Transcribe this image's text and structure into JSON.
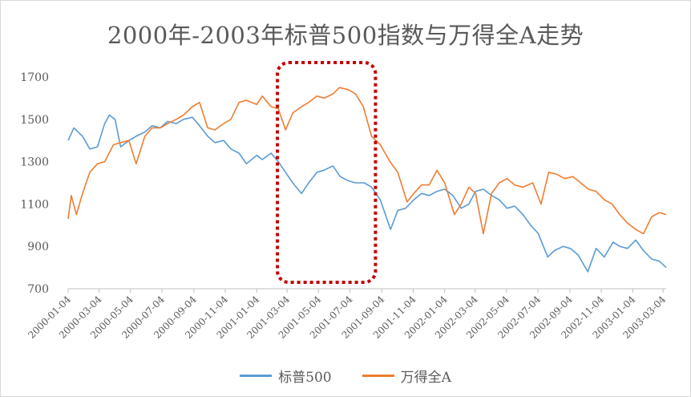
{
  "chart_data": {
    "type": "line",
    "title": "2000年-2003年标普500指数与万得全A走势",
    "xlabel": "",
    "ylabel": "",
    "ylim": [
      700,
      1700
    ],
    "yticks": [
      700,
      900,
      1100,
      1300,
      1500,
      1700
    ],
    "x_tick_labels": [
      "2000-01-04",
      "2000-03-04",
      "2000-05-04",
      "2000-07-04",
      "2000-09-04",
      "2000-11-04",
      "2001-01-04",
      "2001-03-04",
      "2001-05-04",
      "2001-07-04",
      "2001-09-04",
      "2001-11-04",
      "2002-01-04",
      "2002-03-04",
      "2002-05-04",
      "2002-07-04",
      "2002-09-04",
      "2002-11-04",
      "2003-01-04",
      "2003-03-04"
    ],
    "xrange": [
      "2000-01-04",
      "2003-03-10"
    ],
    "grid": false,
    "legend_position": "bottom",
    "highlight_box": [
      "2001-03-04",
      "2001-08-04"
    ],
    "colors": {
      "sp500": "#5b9bd5",
      "wind": "#ed7d31",
      "highlight": "#c00000"
    },
    "series": [
      {
        "name": "标普500",
        "x": [
          "2000-01-04",
          "2000-01-15",
          "2000-02-01",
          "2000-02-15",
          "2000-03-01",
          "2000-03-15",
          "2000-03-24",
          "2000-04-04",
          "2000-04-15",
          "2000-05-01",
          "2000-05-15",
          "2000-06-01",
          "2000-06-15",
          "2000-07-01",
          "2000-07-15",
          "2000-08-01",
          "2000-08-15",
          "2000-09-01",
          "2000-09-15",
          "2000-10-01",
          "2000-10-15",
          "2000-11-01",
          "2000-11-15",
          "2000-12-01",
          "2000-12-15",
          "2001-01-04",
          "2001-01-15",
          "2001-02-01",
          "2001-02-15",
          "2001-03-01",
          "2001-03-15",
          "2001-04-01",
          "2001-04-15",
          "2001-05-01",
          "2001-05-15",
          "2001-06-01",
          "2001-06-15",
          "2001-07-01",
          "2001-07-15",
          "2001-08-01",
          "2001-08-15",
          "2001-09-01",
          "2001-09-21",
          "2001-10-05",
          "2001-10-20",
          "2001-11-05",
          "2001-11-20",
          "2001-12-05",
          "2001-12-20",
          "2002-01-04",
          "2002-01-20",
          "2002-02-05",
          "2002-02-20",
          "2002-03-05",
          "2002-03-20",
          "2002-04-05",
          "2002-04-20",
          "2002-05-05",
          "2002-05-20",
          "2002-06-05",
          "2002-06-20",
          "2002-07-05",
          "2002-07-23",
          "2002-08-05",
          "2002-08-22",
          "2002-09-05",
          "2002-09-20",
          "2002-10-09",
          "2002-10-25",
          "2002-11-10",
          "2002-11-27",
          "2002-12-10",
          "2002-12-25",
          "2003-01-10",
          "2003-01-25",
          "2003-02-10",
          "2003-02-25",
          "2003-03-10"
        ],
        "values": [
          1400,
          1460,
          1420,
          1360,
          1370,
          1480,
          1520,
          1500,
          1370,
          1400,
          1420,
          1440,
          1470,
          1460,
          1490,
          1480,
          1500,
          1510,
          1470,
          1420,
          1390,
          1400,
          1360,
          1340,
          1290,
          1330,
          1310,
          1340,
          1300,
          1250,
          1200,
          1150,
          1200,
          1250,
          1260,
          1280,
          1230,
          1210,
          1200,
          1200,
          1180,
          1120,
          980,
          1070,
          1080,
          1120,
          1150,
          1140,
          1160,
          1170,
          1140,
          1080,
          1100,
          1160,
          1170,
          1140,
          1120,
          1080,
          1090,
          1050,
          1000,
          960,
          850,
          880,
          900,
          890,
          860,
          780,
          890,
          850,
          920,
          900,
          890,
          930,
          880,
          840,
          830,
          800
        ]
      },
      {
        "name": "万得全A",
        "x": [
          "2000-01-04",
          "2000-01-10",
          "2000-01-20",
          "2000-02-01",
          "2000-02-15",
          "2000-03-01",
          "2000-03-15",
          "2000-04-01",
          "2000-04-15",
          "2000-05-01",
          "2000-05-15",
          "2000-06-01",
          "2000-06-15",
          "2000-07-01",
          "2000-07-15",
          "2000-08-01",
          "2000-08-15",
          "2000-09-01",
          "2000-09-15",
          "2000-10-01",
          "2000-10-15",
          "2000-11-01",
          "2000-11-15",
          "2000-12-01",
          "2000-12-15",
          "2001-01-04",
          "2001-01-15",
          "2001-02-01",
          "2001-02-15",
          "2001-03-01",
          "2001-03-15",
          "2001-04-01",
          "2001-04-15",
          "2001-05-01",
          "2001-05-15",
          "2001-06-01",
          "2001-06-14",
          "2001-07-01",
          "2001-07-15",
          "2001-07-30",
          "2001-08-15",
          "2001-09-01",
          "2001-09-20",
          "2001-10-05",
          "2001-10-23",
          "2001-11-05",
          "2001-11-20",
          "2001-12-05",
          "2001-12-20",
          "2002-01-04",
          "2002-01-23",
          "2002-02-05",
          "2002-02-20",
          "2002-03-05",
          "2002-03-20",
          "2002-04-05",
          "2002-04-20",
          "2002-05-05",
          "2002-05-20",
          "2002-06-05",
          "2002-06-24",
          "2002-07-10",
          "2002-07-25",
          "2002-08-10",
          "2002-08-25",
          "2002-09-10",
          "2002-09-25",
          "2002-10-10",
          "2002-10-25",
          "2002-11-10",
          "2002-11-25",
          "2002-12-10",
          "2002-12-25",
          "2003-01-10",
          "2003-01-25",
          "2003-02-10",
          "2003-02-25",
          "2003-03-10"
        ],
        "values": [
          1030,
          1140,
          1050,
          1150,
          1250,
          1290,
          1300,
          1380,
          1390,
          1400,
          1290,
          1420,
          1460,
          1460,
          1480,
          1500,
          1520,
          1560,
          1580,
          1460,
          1450,
          1480,
          1500,
          1580,
          1590,
          1570,
          1610,
          1560,
          1550,
          1450,
          1530,
          1560,
          1580,
          1610,
          1600,
          1620,
          1650,
          1640,
          1620,
          1560,
          1420,
          1380,
          1300,
          1250,
          1110,
          1150,
          1190,
          1190,
          1260,
          1200,
          1050,
          1100,
          1180,
          1150,
          960,
          1150,
          1200,
          1220,
          1190,
          1180,
          1200,
          1100,
          1250,
          1240,
          1220,
          1230,
          1200,
          1170,
          1160,
          1120,
          1100,
          1050,
          1010,
          980,
          960,
          1040,
          1060,
          1050
        ]
      }
    ]
  }
}
